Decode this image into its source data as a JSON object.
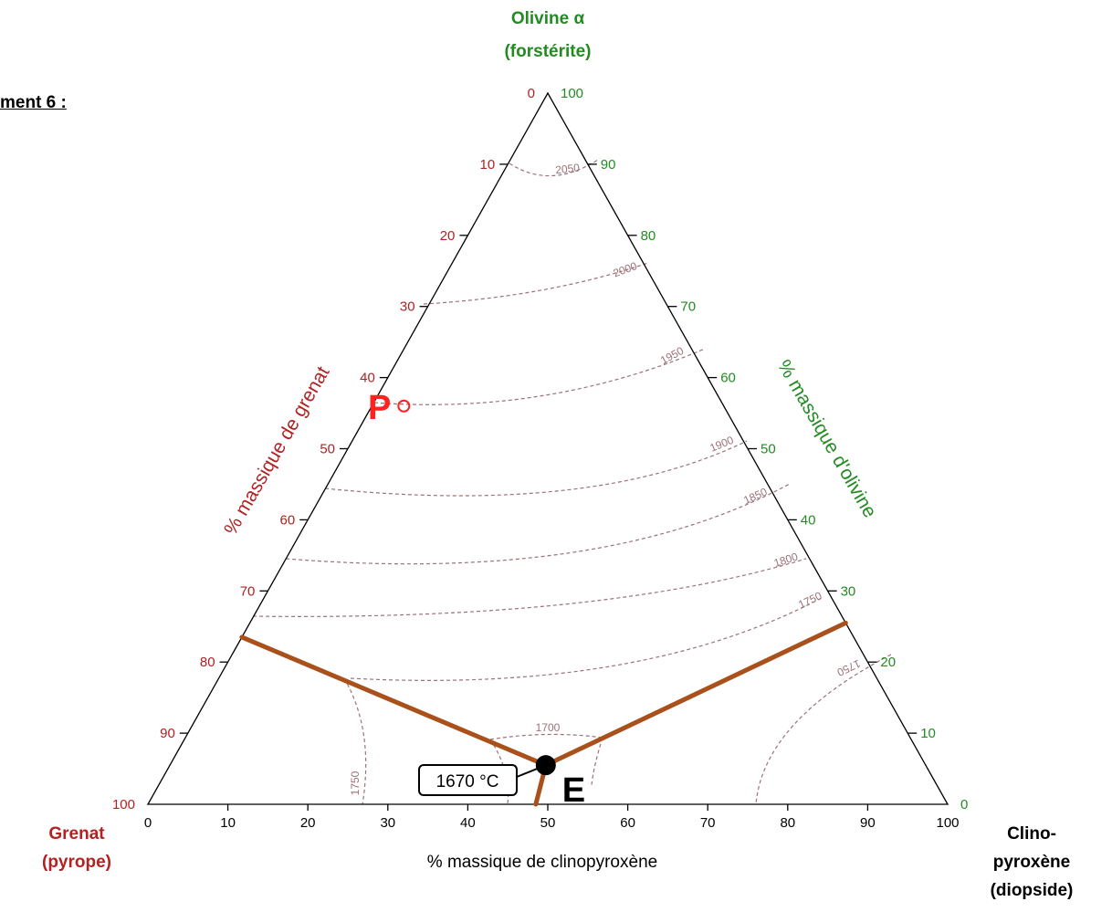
{
  "document": {
    "title": "ment 6 :"
  },
  "chart_data": {
    "type": "ternary",
    "vertices": {
      "top": {
        "name": "Olivine α",
        "subname": "(forstérite)"
      },
      "left": {
        "name": "Grenat",
        "subname": "(pyrope)"
      },
      "right": {
        "name": "Clino-",
        "name2": "pyroxène",
        "subname": "(diopside)"
      }
    },
    "axes": {
      "grenat": {
        "label": "% massique de grenat",
        "ticks": [
          "0",
          "10",
          "20",
          "30",
          "40",
          "50",
          "60",
          "70",
          "80",
          "90",
          "100"
        ]
      },
      "olivine": {
        "label": "% massique d'olivine",
        "ticks": [
          "100",
          "90",
          "80",
          "70",
          "60",
          "50",
          "40",
          "30",
          "20",
          "10",
          "0"
        ]
      },
      "clinopyroxene": {
        "label": "% massique de clinopyroxène",
        "ticks": [
          "0",
          "10",
          "20",
          "30",
          "40",
          "50",
          "60",
          "70",
          "80",
          "90",
          "100"
        ]
      }
    },
    "isotherms": [
      {
        "label": "2050"
      },
      {
        "label": "2000"
      },
      {
        "label": "1950"
      },
      {
        "label": "1900"
      },
      {
        "label": "1850"
      },
      {
        "label": "1800"
      },
      {
        "label": "1750"
      },
      {
        "label": "1700"
      },
      {
        "label": "1750"
      },
      {
        "label": "1750"
      }
    ],
    "cotectic_lines": [
      {
        "from": {
          "grenat": 76.5,
          "olivine": 23.5,
          "clinopyroxene": 0
        },
        "to": {
          "grenat": 47.5,
          "olivine": 5.5,
          "clinopyroxene": 47
        }
      },
      {
        "from": {
          "grenat": 0,
          "olivine": 25.5,
          "clinopyroxene": 74.5
        },
        "to": {
          "grenat": 47.5,
          "olivine": 5.5,
          "clinopyroxene": 47
        }
      },
      {
        "from": {
          "grenat": 47.5,
          "olivine": 5.5,
          "clinopyroxene": 47
        },
        "to": {
          "grenat": 51.5,
          "olivine": 0,
          "clinopyroxene": 48.5
        }
      }
    ],
    "points": [
      {
        "label": "P",
        "grenat": 40,
        "olivine": 56,
        "clinopyroxene": 4
      },
      {
        "label": "E",
        "grenat": 47.5,
        "olivine": 5.5,
        "clinopyroxene": 47,
        "annotation": "1670 °C"
      }
    ],
    "colors": {
      "grenat": "#b22222",
      "olivine": "#228b22",
      "cotectic": "#a9501b",
      "isotherm": "#9c7278",
      "point_p": "#ff2020"
    }
  }
}
